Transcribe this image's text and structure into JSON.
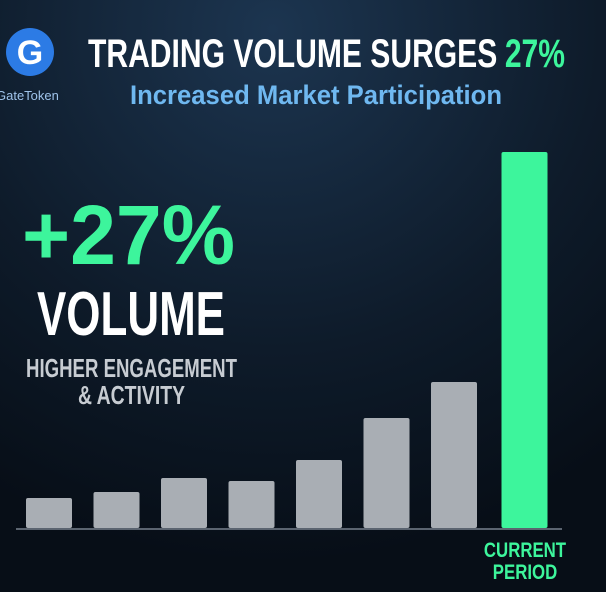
{
  "chart_data": {
    "type": "bar",
    "brand": {
      "logo": "G",
      "name": "GateToken"
    },
    "title": "TRADING VOLUME SURGES",
    "title_highlight": "27%",
    "subtitle": "Increased Market Participation",
    "callout": {
      "headline": "+27%",
      "label": "VOLUME",
      "caption": [
        "HIGHER ENGAGEMENT",
        "& ACTIVITY"
      ]
    },
    "categories": [
      null,
      null,
      null,
      null,
      null,
      null,
      null,
      "CURRENT PERIOD"
    ],
    "values": [
      30,
      36,
      50,
      47,
      68,
      110,
      146,
      376
    ],
    "colors": [
      "#a9aeb4",
      "#a9aeb4",
      "#a9aeb4",
      "#a9aeb4",
      "#a9aeb4",
      "#a9aeb4",
      "#a9aeb4",
      "#3df59c"
    ],
    "ylim": [
      0,
      400
    ]
  }
}
